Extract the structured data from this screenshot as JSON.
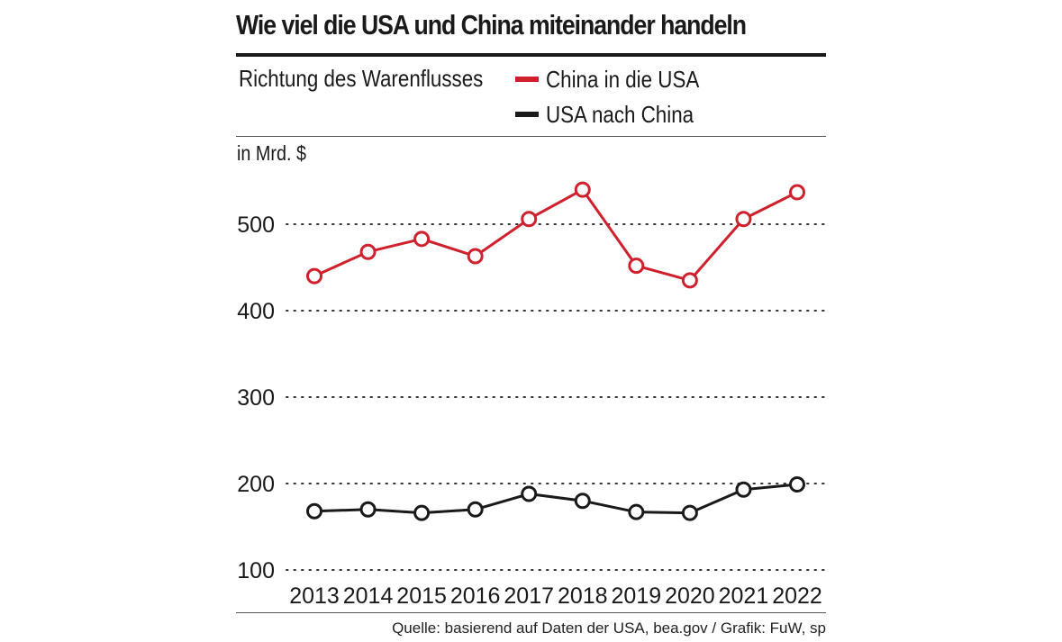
{
  "title": "Wie viel die USA und China miteinander handeln",
  "legend": {
    "heading": "Richtung des Warenflusses",
    "items": [
      {
        "label": "China in die USA",
        "color": "#d0202e"
      },
      {
        "label": "USA nach China",
        "color": "#1a1a1a"
      }
    ]
  },
  "unit_label": "in Mrd. $",
  "source": "Quelle: basierend auf Daten der USA, bea.gov / Grafik: FuW, sp",
  "chart_data": {
    "type": "line",
    "title": "Wie viel die USA und China miteinander handeln",
    "xlabel": "",
    "ylabel": "in Mrd. $",
    "x": [
      "2013",
      "2014",
      "2015",
      "2016",
      "2017",
      "2018",
      "2019",
      "2020",
      "2021",
      "2022"
    ],
    "yticks": [
      100,
      200,
      300,
      400,
      500
    ],
    "ylim": [
      100,
      575
    ],
    "grid": true,
    "series": [
      {
        "name": "China in die USA",
        "color": "#d0202e",
        "values": [
          440,
          468,
          483,
          463,
          506,
          540,
          452,
          435,
          506,
          537
        ]
      },
      {
        "name": "USA nach China",
        "color": "#1a1a1a",
        "values": [
          168,
          170,
          166,
          170,
          188,
          180,
          167,
          166,
          193,
          199
        ]
      }
    ]
  }
}
